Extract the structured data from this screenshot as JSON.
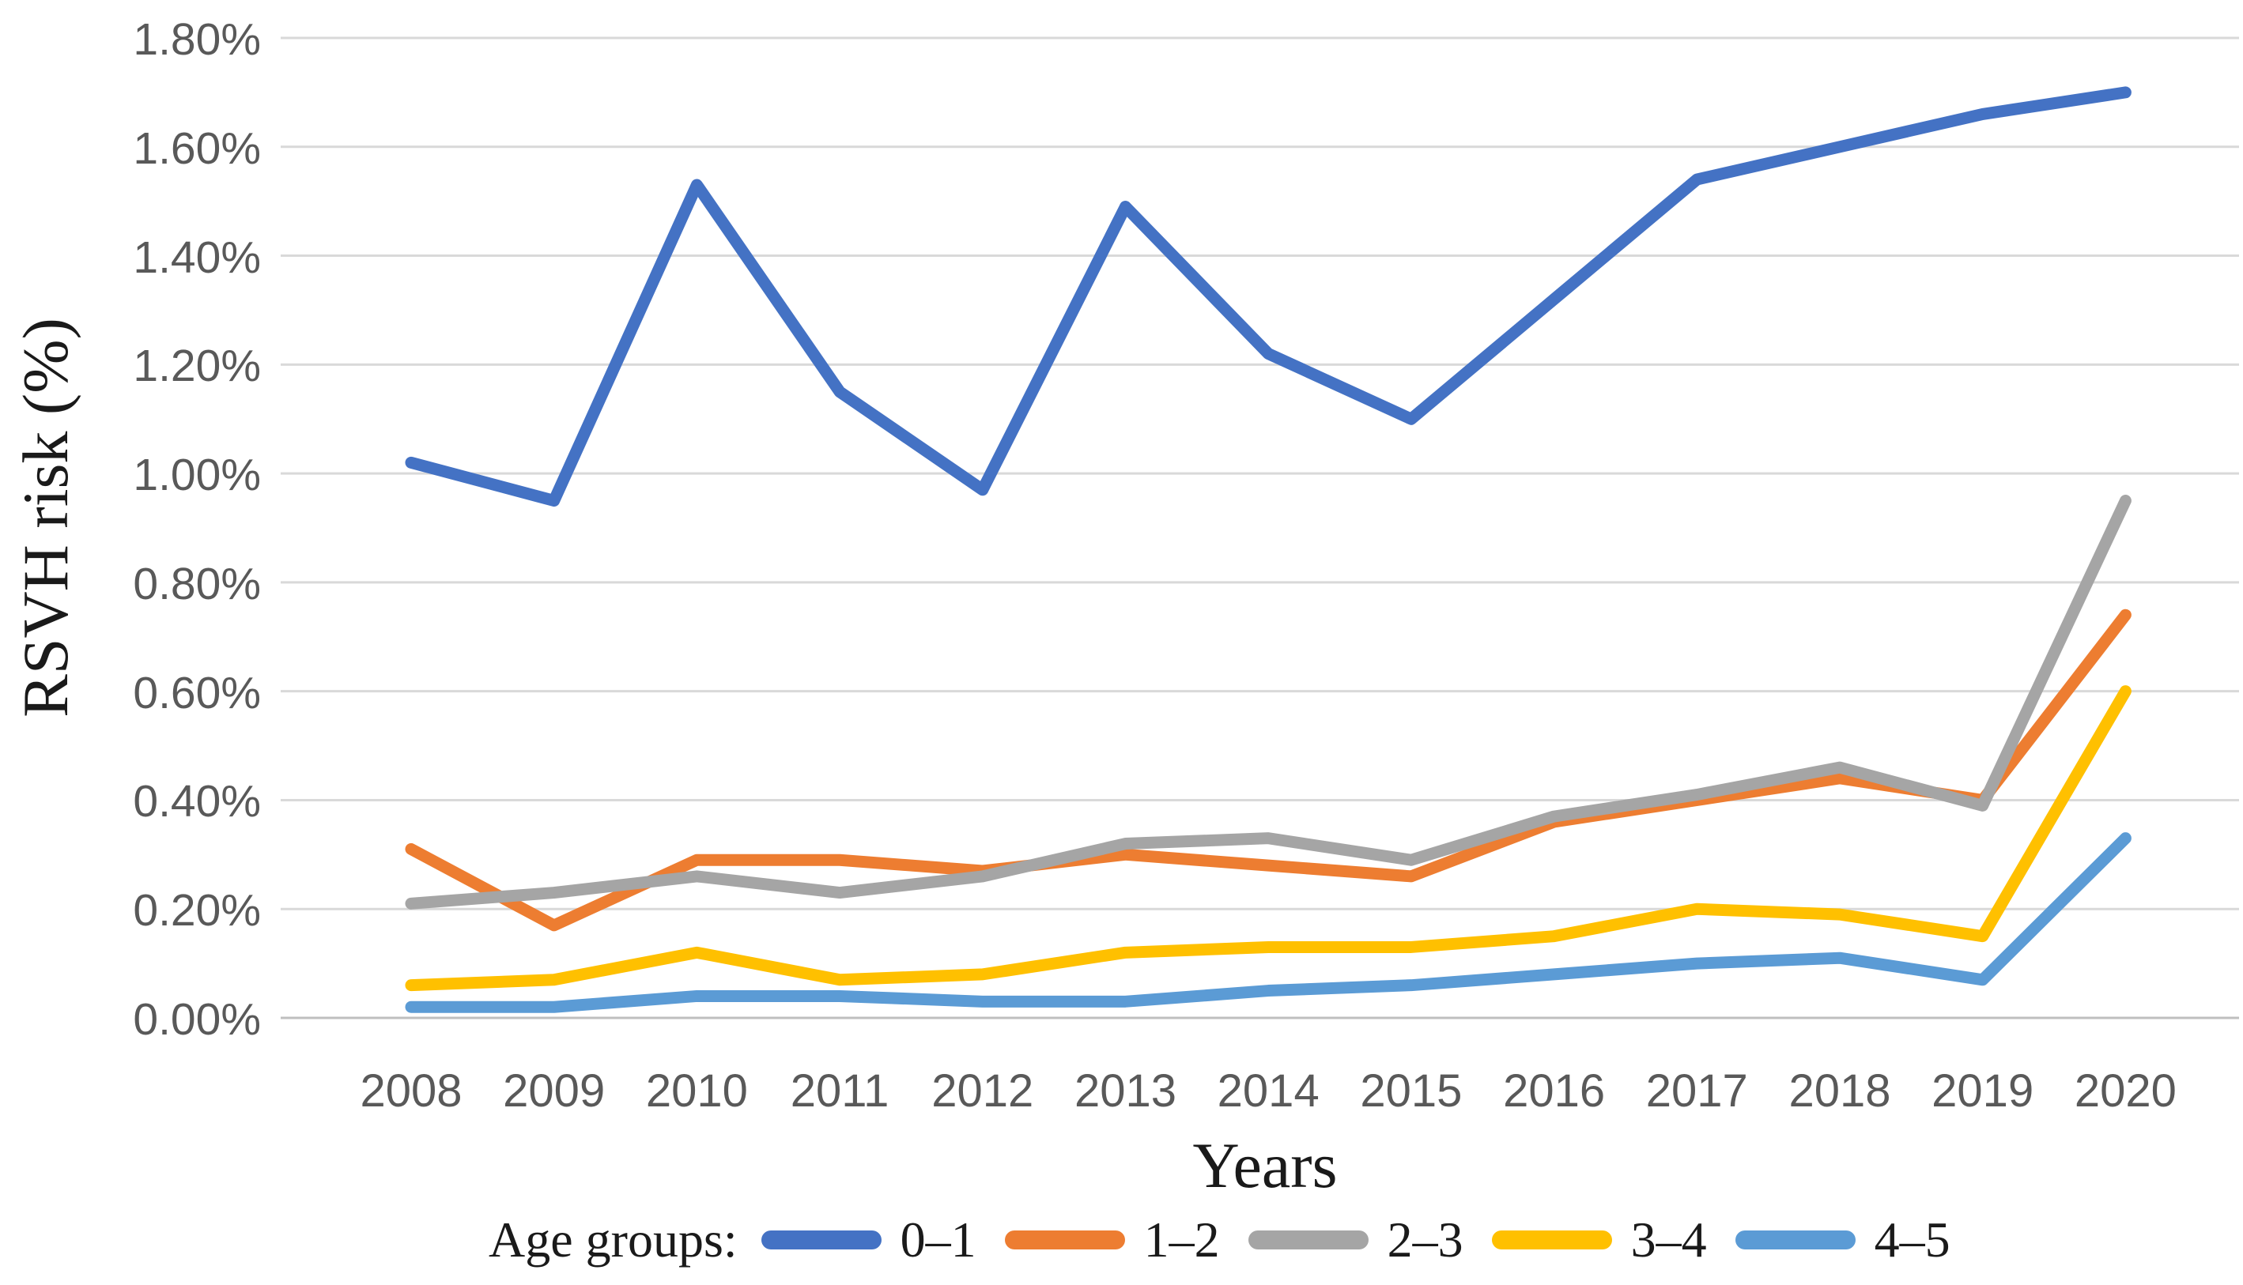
{
  "chart_data": {
    "type": "line",
    "title": "",
    "xlabel": "Years",
    "ylabel": "RSVH risk (%)",
    "legend_title": "Age groups:",
    "legend_position": "bottom",
    "grid": "horizontal",
    "ylim": [
      0.0,
      1.8
    ],
    "y_tick_step": 0.2,
    "y_tick_labels": [
      "0.00%",
      "0.20%",
      "0.40%",
      "0.60%",
      "0.80%",
      "1.00%",
      "1.20%",
      "1.40%",
      "1.60%",
      "1.80%"
    ],
    "categories": [
      "2008",
      "2009",
      "2010",
      "2011",
      "2012",
      "2013",
      "2014",
      "2015",
      "2016",
      "2017",
      "2018",
      "2019",
      "2020"
    ],
    "series": [
      {
        "name": "0–1",
        "color": "#4472C4",
        "values": [
          1.02,
          0.95,
          1.53,
          1.15,
          0.97,
          1.49,
          1.22,
          1.1,
          1.32,
          1.54,
          1.6,
          1.66,
          1.7
        ]
      },
      {
        "name": "1–2",
        "color": "#ED7D31",
        "values": [
          0.31,
          0.17,
          0.29,
          0.29,
          0.27,
          0.3,
          0.28,
          0.26,
          0.36,
          0.4,
          0.44,
          0.4,
          0.74
        ]
      },
      {
        "name": "2–3",
        "color": "#A5A5A5",
        "values": [
          0.21,
          0.23,
          0.26,
          0.23,
          0.26,
          0.32,
          0.33,
          0.29,
          0.37,
          0.41,
          0.46,
          0.39,
          0.95
        ]
      },
      {
        "name": "3–4",
        "color": "#FFC000",
        "values": [
          0.06,
          0.07,
          0.12,
          0.07,
          0.08,
          0.12,
          0.13,
          0.13,
          0.15,
          0.2,
          0.19,
          0.15,
          0.6
        ]
      },
      {
        "name": "4–5",
        "color": "#5B9BD5",
        "values": [
          0.02,
          0.02,
          0.04,
          0.04,
          0.03,
          0.03,
          0.05,
          0.06,
          0.08,
          0.1,
          0.11,
          0.07,
          0.33
        ]
      }
    ],
    "gridline_color": "#D9D9D9",
    "axis_line_color": "#BFBFBF"
  }
}
